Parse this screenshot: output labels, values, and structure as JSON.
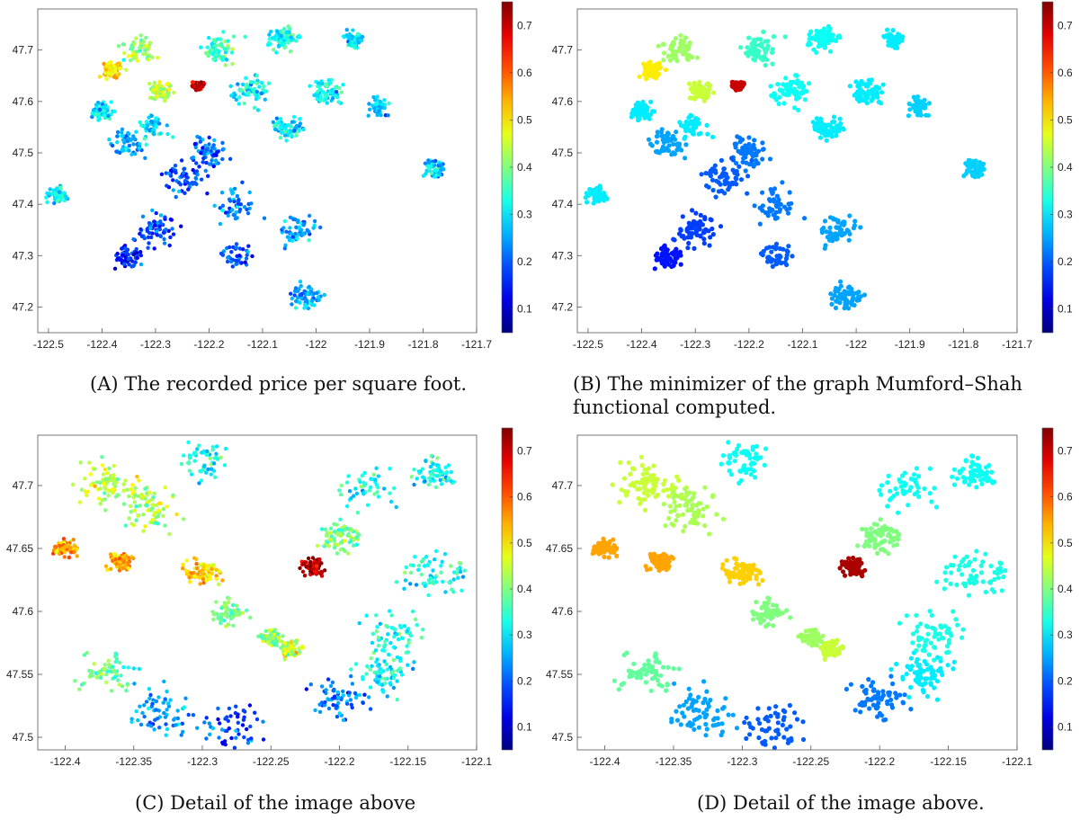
{
  "chart_data": [
    {
      "type": "scatter",
      "panel_label": "(A)",
      "caption": "The recorded price per square foot.",
      "xlim": [
        -122.52,
        -121.7
      ],
      "ylim": [
        47.15,
        47.78
      ],
      "xticks": [
        "-122.5",
        "-122.4",
        "-122.3",
        "-122.2",
        "-122.1",
        "-122",
        "-121.9",
        "-121.8",
        "-121.7"
      ],
      "yticks": [
        "47.2",
        "47.3",
        "47.4",
        "47.5",
        "47.6",
        "47.7"
      ],
      "colorbar": {
        "min": 0.05,
        "max": 0.75,
        "ticks": [
          "0.1",
          "0.2",
          "0.3",
          "0.4",
          "0.5",
          "0.6",
          "0.7"
        ],
        "colormap": "jet"
      },
      "smoothed": false
    },
    {
      "type": "scatter",
      "panel_label": "(B)",
      "caption": "The minimizer of the graph Mumford–Shah functional computed.",
      "xlim": [
        -122.52,
        -121.7
      ],
      "ylim": [
        47.15,
        47.78
      ],
      "xticks": [
        "-122.5",
        "-122.4",
        "-122.3",
        "-122.2",
        "-122.1",
        "-122",
        "-121.9",
        "-121.8",
        "-121.7"
      ],
      "yticks": [
        "47.2",
        "47.3",
        "47.4",
        "47.5",
        "47.6",
        "47.7"
      ],
      "colorbar": {
        "min": 0.05,
        "max": 0.75,
        "ticks": [
          "0.1",
          "0.2",
          "0.3",
          "0.4",
          "0.5",
          "0.6",
          "0.7"
        ],
        "colormap": "jet"
      },
      "smoothed": true
    },
    {
      "type": "scatter",
      "panel_label": "(C)",
      "caption": "Detail of the image above",
      "xlim": [
        -122.42,
        -122.1
      ],
      "ylim": [
        47.49,
        47.74
      ],
      "xticks": [
        "-122.4",
        "-122.35",
        "-122.3",
        "-122.25",
        "-122.2",
        "-122.15",
        "-122.1"
      ],
      "yticks": [
        "47.5",
        "47.55",
        "47.6",
        "47.65",
        "47.7"
      ],
      "colorbar": {
        "min": 0.05,
        "max": 0.75,
        "ticks": [
          "0.1",
          "0.2",
          "0.3",
          "0.4",
          "0.5",
          "0.6",
          "0.7"
        ],
        "colormap": "jet"
      },
      "smoothed": false
    },
    {
      "type": "scatter",
      "panel_label": "(D)",
      "caption": "Detail of the image above.",
      "xlim": [
        -122.42,
        -122.1
      ],
      "ylim": [
        47.49,
        47.74
      ],
      "xticks": [
        "-122.4",
        "-122.35",
        "-122.3",
        "-122.25",
        "-122.2",
        "-122.15",
        "-122.1"
      ],
      "yticks": [
        "47.5",
        "47.55",
        "47.6",
        "47.65",
        "47.7"
      ],
      "colorbar": {
        "min": 0.05,
        "max": 0.75,
        "ticks": [
          "0.1",
          "0.2",
          "0.3",
          "0.4",
          "0.5",
          "0.6",
          "0.7"
        ],
        "colormap": "jet"
      },
      "smoothed": true
    }
  ]
}
